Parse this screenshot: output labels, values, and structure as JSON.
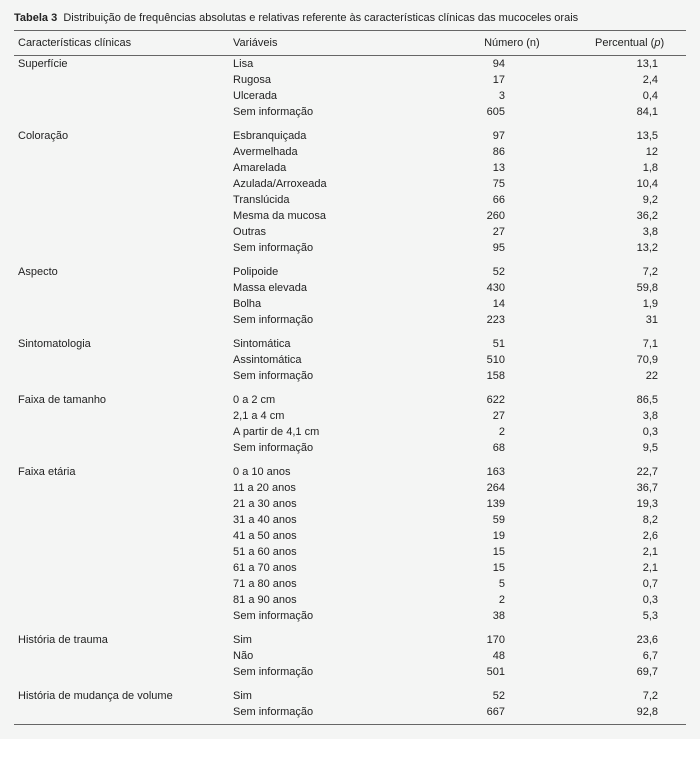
{
  "caption_label": "Tabela 3",
  "caption_text": "Distribuição de frequências absolutas e relativas referente às características clínicas das mucoceles orais",
  "headers": {
    "char": "Características clínicas",
    "var": "Variáveis",
    "num": "Número (n)",
    "pct_prefix": "Percentual (",
    "pct_ital": "p",
    "pct_suffix": ")"
  },
  "groups": [
    {
      "name": "Superfície",
      "rows": [
        {
          "var": "Lisa",
          "n": "94",
          "p": "13,1"
        },
        {
          "var": "Rugosa",
          "n": "17",
          "p": "2,4"
        },
        {
          "var": "Ulcerada",
          "n": "3",
          "p": "0,4"
        },
        {
          "var": "Sem informação",
          "n": "605",
          "p": "84,1"
        }
      ]
    },
    {
      "name": "Coloração",
      "rows": [
        {
          "var": "Esbranquiçada",
          "n": "97",
          "p": "13,5"
        },
        {
          "var": "Avermelhada",
          "n": "86",
          "p": "12"
        },
        {
          "var": "Amarelada",
          "n": "13",
          "p": "1,8"
        },
        {
          "var": "Azulada/Arroxeada",
          "n": "75",
          "p": "10,4"
        },
        {
          "var": "Translúcida",
          "n": "66",
          "p": "9,2"
        },
        {
          "var": "Mesma da mucosa",
          "n": "260",
          "p": "36,2"
        },
        {
          "var": "Outras",
          "n": "27",
          "p": "3,8"
        },
        {
          "var": "Sem informação",
          "n": "95",
          "p": "13,2"
        }
      ]
    },
    {
      "name": "Aspecto",
      "rows": [
        {
          "var": "Polipoide",
          "n": "52",
          "p": "7,2"
        },
        {
          "var": "Massa elevada",
          "n": "430",
          "p": "59,8"
        },
        {
          "var": "Bolha",
          "n": "14",
          "p": "1,9"
        },
        {
          "var": "Sem informação",
          "n": "223",
          "p": "31"
        }
      ]
    },
    {
      "name": "Sintomatologia",
      "rows": [
        {
          "var": "Sintomática",
          "n": "51",
          "p": "7,1"
        },
        {
          "var": "Assintomática",
          "n": "510",
          "p": "70,9"
        },
        {
          "var": "Sem informação",
          "n": "158",
          "p": "22"
        }
      ]
    },
    {
      "name": "Faixa de tamanho",
      "rows": [
        {
          "var": "0 a 2 cm",
          "n": "622",
          "p": "86,5"
        },
        {
          "var": "2,1 a 4 cm",
          "n": "27",
          "p": "3,8"
        },
        {
          "var": "A partir de 4,1 cm",
          "n": "2",
          "p": "0,3"
        },
        {
          "var": "Sem informação",
          "n": "68",
          "p": "9,5"
        }
      ]
    },
    {
      "name": "Faixa etária",
      "rows": [
        {
          "var": "0 a 10 anos",
          "n": "163",
          "p": "22,7"
        },
        {
          "var": "11 a 20 anos",
          "n": "264",
          "p": "36,7"
        },
        {
          "var": "21 a 30 anos",
          "n": "139",
          "p": "19,3"
        },
        {
          "var": "31 a 40 anos",
          "n": "59",
          "p": "8,2"
        },
        {
          "var": "41 a 50 anos",
          "n": "19",
          "p": "2,6"
        },
        {
          "var": "51 a 60 anos",
          "n": "15",
          "p": "2,1"
        },
        {
          "var": "61 a 70 anos",
          "n": "15",
          "p": "2,1"
        },
        {
          "var": "71 a 80 anos",
          "n": "5",
          "p": "0,7"
        },
        {
          "var": "81 a 90 anos",
          "n": "2",
          "p": "0,3"
        },
        {
          "var": "Sem informação",
          "n": "38",
          "p": "5,3"
        }
      ]
    },
    {
      "name": "História de trauma",
      "rows": [
        {
          "var": "Sim",
          "n": "170",
          "p": "23,6"
        },
        {
          "var": "Não",
          "n": "48",
          "p": "6,7"
        },
        {
          "var": "Sem informação",
          "n": "501",
          "p": "69,7"
        }
      ]
    },
    {
      "name": "História de mudança de volume",
      "rows": [
        {
          "var": "Sim",
          "n": "52",
          "p": "7,2"
        },
        {
          "var": "Sem informação",
          "n": "667",
          "p": "92,8"
        }
      ]
    }
  ],
  "colors": {
    "background": "#f4f5f4",
    "rule": "#666666",
    "text": "#222222"
  }
}
